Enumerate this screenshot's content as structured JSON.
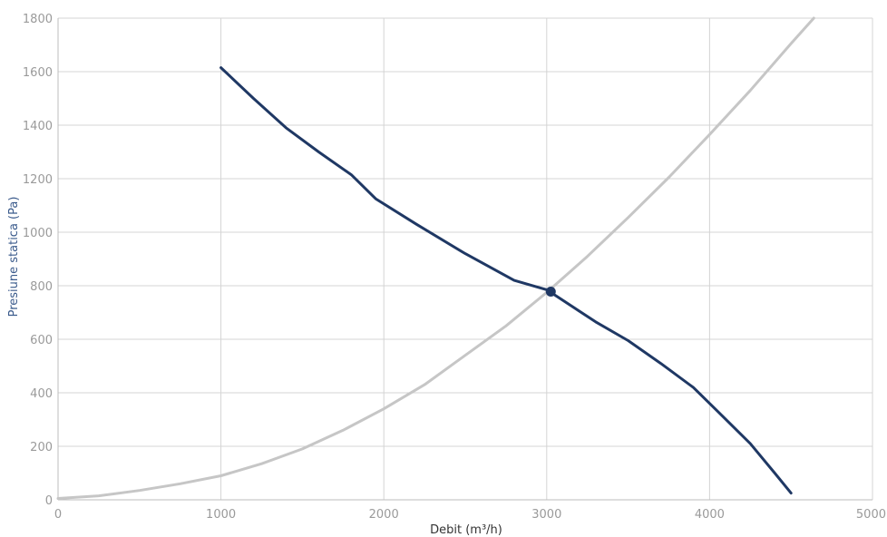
{
  "chart_data": {
    "type": "line",
    "xlabel": "Debit (m³/h)",
    "ylabel": "Presiune statica (Pa)",
    "xlim": [
      0,
      5000
    ],
    "ylim": [
      0,
      1800
    ],
    "x_ticks": [
      "0",
      "1000",
      "2000",
      "3000",
      "4000",
      "5000"
    ],
    "y_ticks": [
      "0",
      "200",
      "400",
      "600",
      "800",
      "1000",
      "1200",
      "1400",
      "1600",
      "1800"
    ],
    "grid": true,
    "legend": "none",
    "series": [
      {
        "color": "#1f3864",
        "x": [
          1000,
          1200,
          1400,
          1600,
          1800,
          1950,
          2200,
          2500,
          2800,
          3000,
          3300,
          3500,
          3700,
          3900,
          4050,
          4250,
          4400,
          4500
        ],
        "values": [
          1615,
          1500,
          1390,
          1300,
          1215,
          1125,
          1030,
          920,
          820,
          785,
          665,
          595,
          510,
          420,
          330,
          210,
          100,
          25
        ]
      },
      {
        "color": "#c6c6c6",
        "x": [
          0,
          250,
          500,
          750,
          1000,
          1250,
          1500,
          1750,
          2000,
          2250,
          2500,
          2750,
          3000,
          3250,
          3500,
          3750,
          4000,
          4250,
          4500,
          4640
        ],
        "values": [
          5,
          15,
          35,
          60,
          90,
          135,
          190,
          260,
          340,
          430,
          540,
          650,
          775,
          910,
          1055,
          1205,
          1365,
          1530,
          1705,
          1800
        ]
      }
    ],
    "operating_point": {
      "x": 3025,
      "y": 778,
      "color": "#1f3864"
    }
  }
}
